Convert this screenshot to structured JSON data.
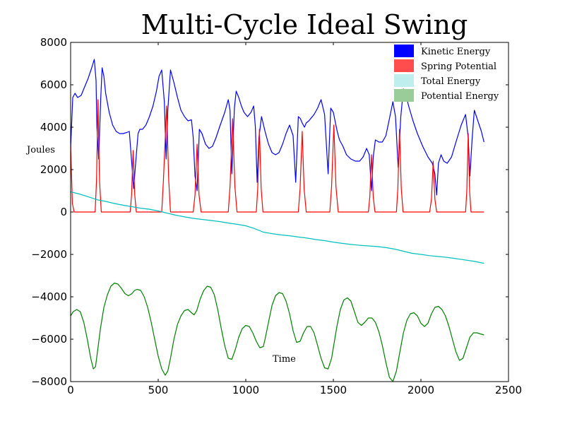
{
  "chart_data": {
    "type": "line",
    "title": "Multi-Cycle Ideal Swing",
    "xlabel": "Time",
    "ylabel": "Joules",
    "xlim": [
      0,
      2500
    ],
    "ylim": [
      -8000,
      8000
    ],
    "xticks": [
      0,
      500,
      1000,
      1500,
      2000,
      2500
    ],
    "yticks": [
      -8000,
      -6000,
      -4000,
      -2000,
      0,
      2000,
      4000,
      6000,
      8000
    ],
    "xtick_labels": [
      "0",
      "500",
      "1000",
      "1500",
      "2000",
      "2500"
    ],
    "ytick_labels": [
      "−8000",
      "−6000",
      "−4000",
      "−2000",
      "0",
      "2000",
      "4000",
      "6000",
      "8000"
    ],
    "grid": false,
    "legend_position": "top-right",
    "legend": [
      {
        "label": "Kinetic Energy",
        "color": "#0000ff"
      },
      {
        "label": "Spring Potential",
        "color": "#ff4d4d"
      },
      {
        "label": "Total Energy",
        "color": "#bfeeee"
      },
      {
        "label": "Potential Energy",
        "color": "#99cc99"
      }
    ],
    "series": [
      {
        "name": "Kinetic Energy",
        "color": "#0000ff",
        "x": [
          0,
          12,
          25,
          40,
          60,
          80,
          100,
          120,
          135,
          145,
          150,
          160,
          172,
          180,
          190,
          200,
          220,
          240,
          260,
          280,
          300,
          320,
          335,
          350,
          360,
          370,
          385,
          395,
          410,
          430,
          450,
          470,
          490,
          505,
          520,
          535,
          545,
          555,
          570,
          590,
          610,
          630,
          650,
          670,
          690,
          700,
          710,
          722,
          735,
          750,
          770,
          790,
          810,
          830,
          850,
          880,
          900,
          910,
          920,
          935,
          945,
          960,
          975,
          990,
          1010,
          1030,
          1045,
          1055,
          1065,
          1075,
          1090,
          1110,
          1130,
          1150,
          1170,
          1190,
          1210,
          1230,
          1250,
          1270,
          1285,
          1300,
          1312,
          1322,
          1335,
          1345,
          1360,
          1390,
          1410,
          1430,
          1450,
          1470,
          1485,
          1500,
          1512,
          1522,
          1535,
          1555,
          1575,
          1600,
          1625,
          1650,
          1670,
          1690,
          1705,
          1718,
          1728,
          1740,
          1760,
          1780,
          1800,
          1820,
          1840,
          1855,
          1870,
          1885,
          1900,
          1915,
          1930,
          1955,
          1980,
          2010,
          2040,
          2065,
          2080,
          2090,
          2100,
          2115,
          2130,
          2150,
          2175,
          2200,
          2230,
          2255,
          2270,
          2280,
          2292,
          2305,
          2325,
          2345,
          2360
        ],
        "y": [
          3000,
          5400,
          5600,
          5400,
          5500,
          5900,
          6300,
          6800,
          7200,
          6200,
          4000,
          2500,
          5400,
          6800,
          6400,
          5600,
          4700,
          4100,
          3800,
          3700,
          3700,
          3750,
          3800,
          2200,
          1100,
          2200,
          3700,
          3900,
          3900,
          4100,
          4500,
          5000,
          5700,
          6400,
          6700,
          5200,
          2500,
          4800,
          6700,
          6100,
          5400,
          4800,
          4500,
          4300,
          4350,
          3500,
          1700,
          1000,
          3900,
          3700,
          3200,
          3000,
          3100,
          3500,
          4000,
          4700,
          5300,
          4800,
          1800,
          4900,
          5700,
          5400,
          5000,
          4700,
          4500,
          4700,
          5000,
          4000,
          1400,
          3500,
          4500,
          3800,
          3200,
          2800,
          2700,
          2800,
          3200,
          3700,
          4100,
          3600,
          1400,
          4500,
          4400,
          4200,
          4000,
          4200,
          4300,
          4600,
          4900,
          5300,
          4600,
          1800,
          4900,
          4700,
          4200,
          3800,
          3400,
          3100,
          2700,
          2500,
          2400,
          2400,
          2600,
          3000,
          2700,
          1000,
          2600,
          3400,
          3300,
          3300,
          3600,
          4400,
          5200,
          4500,
          2100,
          4500,
          5800,
          5500,
          5000,
          4300,
          3700,
          3100,
          2600,
          2300,
          1800,
          800,
          2300,
          2700,
          2400,
          2300,
          2600,
          3300,
          4100,
          4600,
          3500,
          1700,
          3400,
          4800,
          4300,
          3800,
          3300
        ]
      },
      {
        "name": "Spring Potential",
        "color": "#ff0000",
        "x": [
          0,
          10,
          20,
          140,
          148,
          156,
          165,
          175,
          340,
          348,
          357,
          366,
          375,
          520,
          530,
          548,
          560,
          570,
          700,
          710,
          722,
          733,
          745,
          900,
          910,
          925,
          938,
          950,
          1060,
          1068,
          1078,
          1088,
          1098,
          1300,
          1310,
          1322,
          1333,
          1345,
          1480,
          1490,
          1503,
          1515,
          1528,
          1700,
          1708,
          1718,
          1728,
          1738,
          1860,
          1868,
          1878,
          1888,
          1898,
          2050,
          2060,
          2070,
          2080,
          2090,
          2255,
          2262,
          2270,
          2278,
          2286,
          2360
        ],
        "y": [
          3200,
          400,
          0,
          0,
          1500,
          5300,
          1500,
          0,
          0,
          800,
          2900,
          800,
          0,
          0,
          1500,
          5000,
          1500,
          0,
          0,
          800,
          3200,
          800,
          0,
          0,
          1200,
          4400,
          1200,
          0,
          0,
          1100,
          3900,
          1100,
          0,
          0,
          1100,
          3800,
          1100,
          0,
          0,
          1200,
          4100,
          1200,
          0,
          0,
          700,
          2700,
          700,
          0,
          0,
          1100,
          3900,
          1100,
          0,
          0,
          600,
          2400,
          600,
          0,
          0,
          1000,
          3700,
          1000,
          0,
          0
        ]
      },
      {
        "name": "Total Energy",
        "color": "#00bfbf",
        "x": [
          0,
          50,
          100,
          150,
          200,
          250,
          300,
          350,
          400,
          450,
          500,
          550,
          600,
          650,
          700,
          750,
          800,
          850,
          900,
          950,
          1000,
          1050,
          1100,
          1150,
          1200,
          1250,
          1300,
          1350,
          1400,
          1450,
          1500,
          1550,
          1600,
          1650,
          1700,
          1750,
          1800,
          1850,
          1900,
          1950,
          2000,
          2050,
          2100,
          2150,
          2200,
          2250,
          2300,
          2360
        ],
        "y": [
          950,
          850,
          720,
          580,
          500,
          400,
          320,
          250,
          180,
          130,
          50,
          -50,
          -150,
          -230,
          -300,
          -350,
          -400,
          -450,
          -520,
          -580,
          -650,
          -780,
          -950,
          -1020,
          -1080,
          -1120,
          -1180,
          -1230,
          -1300,
          -1350,
          -1420,
          -1480,
          -1530,
          -1570,
          -1600,
          -1630,
          -1680,
          -1750,
          -1850,
          -1950,
          -2000,
          -2060,
          -2100,
          -2140,
          -2200,
          -2260,
          -2320,
          -2420
        ]
      },
      {
        "name": "Potential Energy",
        "color": "#008000",
        "x": [
          0,
          15,
          35,
          55,
          75,
          95,
          115,
          130,
          142,
          155,
          170,
          190,
          210,
          230,
          250,
          270,
          290,
          310,
          330,
          350,
          365,
          380,
          400,
          420,
          440,
          460,
          480,
          500,
          520,
          540,
          555,
          570,
          590,
          610,
          630,
          650,
          670,
          690,
          705,
          720,
          740,
          760,
          780,
          800,
          820,
          840,
          860,
          880,
          900,
          920,
          940,
          960,
          980,
          1000,
          1020,
          1040,
          1060,
          1080,
          1100,
          1110,
          1130,
          1150,
          1170,
          1190,
          1210,
          1230,
          1250,
          1270,
          1290,
          1310,
          1330,
          1350,
          1370,
          1390,
          1410,
          1430,
          1450,
          1470,
          1490,
          1500,
          1520,
          1540,
          1560,
          1580,
          1600,
          1620,
          1640,
          1660,
          1680,
          1700,
          1720,
          1740,
          1760,
          1780,
          1800,
          1820,
          1840,
          1860,
          1880,
          1900,
          1920,
          1940,
          1960,
          1980,
          2000,
          2020,
          2040,
          2060,
          2080,
          2100,
          2120,
          2140,
          2160,
          2180,
          2200,
          2220,
          2240,
          2260,
          2280,
          2300,
          2320,
          2340,
          2360
        ],
        "y": [
          -4900,
          -4700,
          -4600,
          -4700,
          -5200,
          -6000,
          -6900,
          -7400,
          -7300,
          -6500,
          -5500,
          -4500,
          -3900,
          -3500,
          -3350,
          -3400,
          -3600,
          -3850,
          -3950,
          -3850,
          -3700,
          -3650,
          -3700,
          -4000,
          -4500,
          -5200,
          -6000,
          -6800,
          -7400,
          -7700,
          -7500,
          -6900,
          -6000,
          -5300,
          -4900,
          -4650,
          -4600,
          -4750,
          -4850,
          -4650,
          -4100,
          -3700,
          -3500,
          -3550,
          -3900,
          -4600,
          -5500,
          -6300,
          -6900,
          -6950,
          -6500,
          -5900,
          -5500,
          -5350,
          -5400,
          -5700,
          -6100,
          -6400,
          -6350,
          -6000,
          -5200,
          -4400,
          -3950,
          -3800,
          -3850,
          -4200,
          -4800,
          -5600,
          -6150,
          -6100,
          -5700,
          -5400,
          -5400,
          -5700,
          -6300,
          -6900,
          -7350,
          -7400,
          -6900,
          -6400,
          -5400,
          -4600,
          -4150,
          -4050,
          -4200,
          -4700,
          -5200,
          -5350,
          -5200,
          -5000,
          -5000,
          -5200,
          -5650,
          -6300,
          -7100,
          -7800,
          -8000,
          -7500,
          -6600,
          -5700,
          -5100,
          -4800,
          -4750,
          -4900,
          -5250,
          -5400,
          -5250,
          -4800,
          -4500,
          -4450,
          -4600,
          -4900,
          -5400,
          -6000,
          -6600,
          -7000,
          -6900,
          -6400,
          -5900,
          -5700,
          -5700,
          -5750,
          -5800
        ]
      }
    ]
  }
}
